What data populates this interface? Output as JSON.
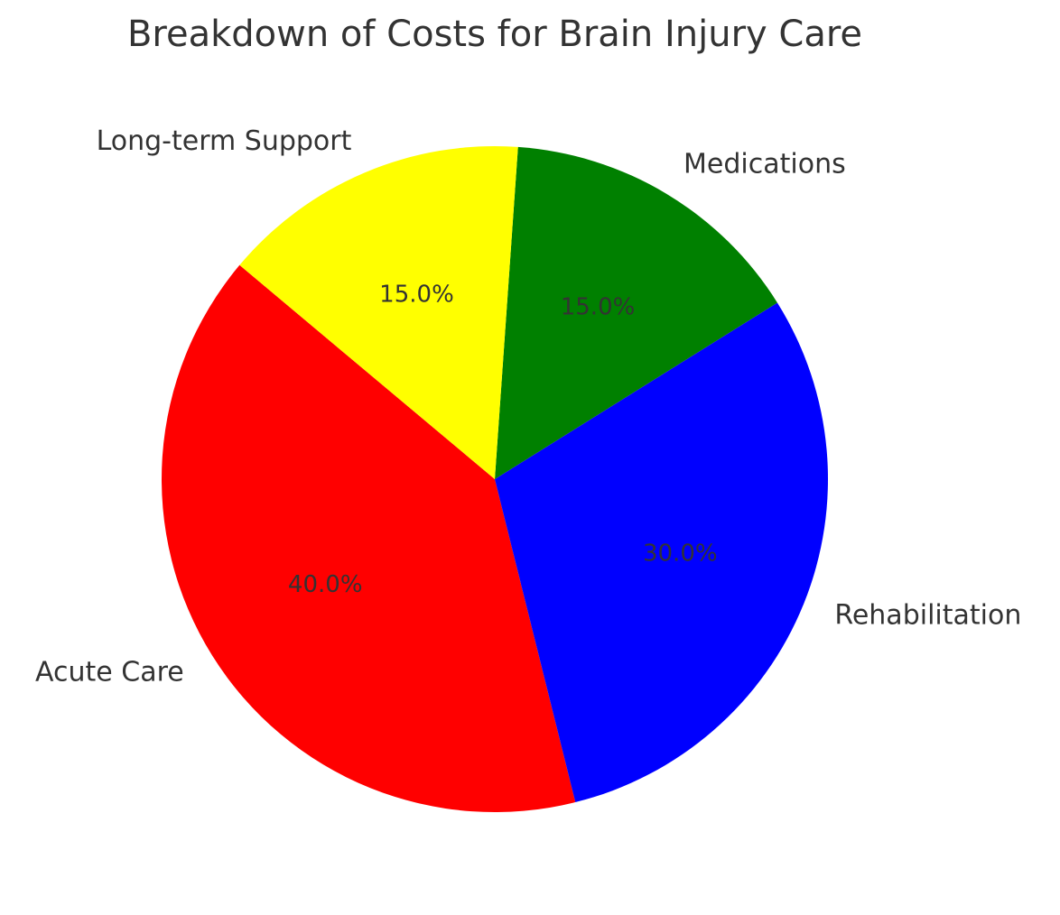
{
  "chart_data": {
    "type": "pie",
    "title": "Breakdown of Costs for Brain Injury Care",
    "categories": [
      "Acute Care",
      "Rehabilitation",
      "Medications",
      "Long-term Support"
    ],
    "values": [
      40,
      30,
      15,
      15
    ],
    "value_labels": [
      "40.0%",
      "30.0%",
      "15.0%",
      "15.0%"
    ],
    "colors": [
      "#ff0000",
      "#0000ff",
      "#008000",
      "#ffff00"
    ],
    "start_angle": 140
  }
}
